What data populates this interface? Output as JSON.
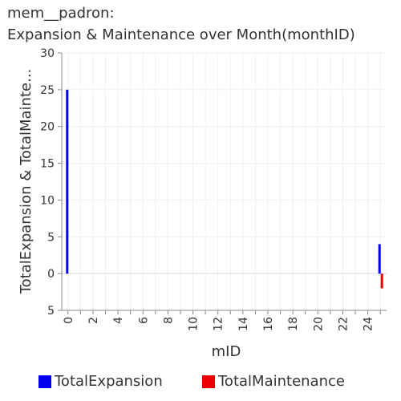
{
  "title": {
    "line1": "mem__padron:",
    "line2": "Expansion & Maintenance over Month(monthID)"
  },
  "chart_data": {
    "type": "bar",
    "title": "mem__padron: Expansion & Maintenance over Month(monthID)",
    "xlabel": "mID",
    "ylabel": "TotalExpansion & TotalMainte...",
    "xlim": [
      -0.5,
      25.5
    ],
    "ylim": [
      -5,
      30
    ],
    "x_ticks": [
      "0",
      "2",
      "4",
      "6",
      "8",
      "10",
      "12",
      "14",
      "16",
      "18",
      "20",
      "22",
      "24"
    ],
    "y_ticks": [
      {
        "value": 30,
        "label": "30"
      },
      {
        "value": 25,
        "label": "25"
      },
      {
        "value": 20,
        "label": "20"
      },
      {
        "value": 15,
        "label": "15"
      },
      {
        "value": 10,
        "label": "10"
      },
      {
        "value": 5,
        "label": "5"
      },
      {
        "value": 0,
        "label": "0"
      },
      {
        "value": -5,
        "label": "5"
      }
    ],
    "series": [
      {
        "name": "TotalExpansion",
        "color": "#0000ee",
        "points": [
          {
            "x": 0,
            "y": 25
          },
          {
            "x": 25,
            "y": 4
          }
        ]
      },
      {
        "name": "TotalMaintenance",
        "color": "#ee0000",
        "points": [
          {
            "x": 25,
            "y": -2
          }
        ]
      }
    ],
    "legend_position": "bottom"
  }
}
